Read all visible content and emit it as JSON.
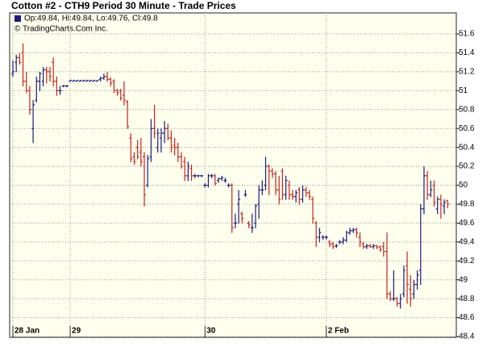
{
  "chart_data": {
    "type": "ohlc",
    "title": "Cotton #2 - CTH9 Period 30 Minute - Trade Prices",
    "legend_text": "Op:49.84, Hi:49.84, Lo:49.76, Cl:49.8",
    "copyright": "© TradingCharts.Com Inc.",
    "up_color": "#1c1c7a",
    "down_color": "#c8231b",
    "grid": true,
    "ylim": [
      48.4,
      51.8
    ],
    "yticks": [
      48.4,
      48.6,
      48.8,
      49,
      49.2,
      49.4,
      49.6,
      49.8,
      50,
      50.2,
      50.4,
      50.6,
      50.8,
      51,
      51.2,
      51.4,
      51.6
    ],
    "categories": [
      "28 Jan",
      null,
      null,
      null,
      null,
      null,
      null,
      null,
      null,
      null,
      null,
      null,
      null,
      null,
      null,
      null,
      null,
      "29",
      null,
      null,
      null,
      null,
      null,
      null,
      null,
      null,
      null,
      null,
      null,
      null,
      null,
      null,
      null,
      null,
      null,
      null,
      null,
      null,
      null,
      null,
      null,
      null,
      null,
      null,
      null,
      null,
      null,
      null,
      null,
      null,
      null,
      null,
      null,
      null,
      null,
      null,
      null,
      "30",
      null,
      null,
      null,
      null,
      null,
      null,
      null,
      null,
      null,
      null,
      null,
      null,
      null,
      null,
      null,
      null,
      null,
      null,
      null,
      null,
      null,
      null,
      null,
      null,
      null,
      null,
      null,
      null,
      null,
      null,
      null,
      null,
      null,
      null,
      null,
      "2 Feb",
      null,
      null,
      null,
      null,
      null,
      null,
      null,
      null,
      null,
      null,
      null,
      null,
      null,
      null,
      null,
      null,
      null,
      null,
      null,
      null,
      null,
      null,
      null,
      null,
      null,
      null,
      null,
      null,
      null,
      null,
      null,
      null,
      null,
      null,
      null,
      null
    ],
    "ohlc": [
      [
        51.18,
        51.32,
        51.15,
        51.2
      ],
      [
        51.3,
        51.38,
        51.2,
        51.35
      ],
      [
        51.35,
        51.4,
        51.28,
        51.3
      ],
      [
        51.4,
        51.5,
        51.05,
        51.1
      ],
      [
        51.1,
        51.2,
        50.98,
        51.0
      ],
      [
        51.0,
        51.05,
        50.75,
        50.8
      ],
      [
        50.6,
        50.9,
        50.45,
        50.85
      ],
      [
        50.9,
        51.15,
        50.88,
        51.1
      ],
      [
        51.1,
        51.2,
        51.0,
        51.18
      ],
      [
        51.1,
        51.25,
        51.05,
        51.22
      ],
      [
        51.22,
        51.25,
        51.08,
        51.2
      ],
      [
        51.2,
        51.25,
        51.1,
        51.15
      ],
      [
        51.3,
        51.35,
        51.05,
        51.1
      ],
      [
        51.1,
        51.15,
        50.95,
        51.0
      ],
      [
        51.0,
        51.05,
        50.96,
        51.0
      ],
      [
        51.05,
        51.06,
        51.04,
        51.05
      ],
      [
        51.05,
        51.06,
        51.04,
        51.05
      ],
      [
        51.1,
        51.11,
        51.1,
        51.11
      ],
      [
        51.1,
        51.11,
        51.1,
        51.11
      ],
      [
        51.1,
        51.11,
        51.1,
        51.11
      ],
      [
        51.1,
        51.11,
        51.1,
        51.11
      ],
      [
        51.1,
        51.11,
        51.1,
        51.11
      ],
      [
        51.1,
        51.11,
        51.1,
        51.11
      ],
      [
        51.1,
        51.11,
        51.1,
        51.11
      ],
      [
        51.1,
        51.11,
        51.1,
        51.11
      ],
      [
        51.1,
        51.11,
        51.1,
        51.11
      ],
      [
        51.12,
        51.15,
        51.1,
        51.13
      ],
      [
        51.13,
        51.18,
        51.12,
        51.15
      ],
      [
        51.15,
        51.2,
        51.1,
        51.12
      ],
      [
        51.12,
        51.14,
        51.05,
        51.08
      ],
      [
        51.1,
        51.12,
        50.98,
        51.0
      ],
      [
        51.0,
        51.02,
        50.95,
        50.98
      ],
      [
        51.0,
        51.02,
        50.9,
        50.92
      ],
      [
        50.95,
        51.1,
        50.85,
        50.9
      ],
      [
        50.88,
        50.9,
        50.6,
        50.62
      ],
      [
        50.5,
        50.55,
        50.25,
        50.28
      ],
      [
        50.3,
        50.35,
        50.22,
        50.25
      ],
      [
        50.4,
        50.48,
        50.28,
        50.3
      ],
      [
        50.35,
        50.5,
        50.2,
        50.25
      ],
      [
        50.3,
        50.35,
        49.78,
        49.9
      ],
      [
        50.0,
        50.32,
        49.98,
        50.28
      ],
      [
        50.3,
        50.7,
        50.25,
        50.6
      ],
      [
        50.6,
        50.85,
        50.5,
        50.55
      ],
      [
        50.4,
        50.6,
        50.35,
        50.55
      ],
      [
        50.5,
        50.6,
        50.35,
        50.55
      ],
      [
        50.55,
        50.68,
        50.45,
        50.6
      ],
      [
        50.6,
        50.65,
        50.48,
        50.5
      ],
      [
        50.5,
        50.58,
        50.35,
        50.4
      ],
      [
        50.42,
        50.5,
        50.32,
        50.4
      ],
      [
        50.4,
        50.45,
        50.25,
        50.3
      ],
      [
        50.3,
        50.35,
        50.18,
        50.2
      ],
      [
        50.25,
        50.3,
        50.05,
        50.1
      ],
      [
        50.1,
        50.25,
        50.05,
        50.2
      ],
      [
        50.18,
        50.22,
        50.05,
        50.1
      ],
      [
        50.1,
        50.12,
        50.08,
        50.1
      ],
      [
        50.1,
        50.11,
        50.09,
        50.1
      ],
      [
        50.1,
        50.11,
        50.09,
        50.1
      ],
      [
        50.0,
        50.02,
        49.98,
        50.0
      ],
      [
        50.0,
        50.12,
        49.98,
        50.1
      ],
      [
        50.1,
        50.12,
        50.08,
        50.1
      ],
      [
        50.1,
        50.12,
        50.0,
        50.02
      ],
      [
        50.05,
        50.08,
        50.03,
        50.07
      ],
      [
        50.07,
        50.1,
        50.05,
        50.08
      ],
      [
        50.05,
        50.08,
        50.03,
        50.05
      ],
      [
        50.0,
        50.02,
        49.98,
        50.0
      ],
      [
        50.0,
        50.02,
        49.5,
        49.55
      ],
      [
        49.6,
        49.7,
        49.55,
        49.6
      ],
      [
        49.8,
        49.95,
        49.6,
        49.85
      ],
      [
        49.7,
        49.72,
        49.6,
        49.65
      ],
      [
        49.9,
        49.95,
        49.88,
        49.9
      ],
      [
        49.6,
        49.62,
        49.55,
        49.58
      ],
      [
        49.55,
        49.7,
        49.5,
        49.55
      ],
      [
        49.6,
        49.8,
        49.55,
        49.78
      ],
      [
        49.8,
        50.0,
        49.65,
        49.95
      ],
      [
        49.95,
        50.05,
        49.9,
        49.95
      ],
      [
        50.0,
        50.3,
        49.95,
        50.2
      ],
      [
        50.2,
        50.22,
        49.9,
        50.15
      ],
      [
        50.15,
        50.18,
        50.08,
        50.12
      ],
      [
        50.12,
        50.15,
        49.9,
        49.95
      ],
      [
        49.95,
        50.1,
        49.8,
        49.85
      ],
      [
        50.15,
        50.18,
        49.85,
        49.9
      ],
      [
        49.9,
        50.1,
        49.85,
        50.05
      ],
      [
        50.0,
        50.05,
        49.85,
        49.9
      ],
      [
        49.9,
        49.95,
        49.85,
        49.88
      ],
      [
        49.88,
        49.95,
        49.82,
        49.92
      ],
      [
        49.95,
        49.98,
        49.8,
        49.85
      ],
      [
        49.85,
        50.0,
        49.82,
        49.95
      ],
      [
        49.95,
        49.98,
        49.88,
        49.92
      ],
      [
        49.92,
        49.95,
        49.85,
        49.88
      ],
      [
        49.85,
        49.88,
        49.6,
        49.65
      ],
      [
        49.6,
        49.62,
        49.35,
        49.45
      ],
      [
        49.45,
        49.55,
        49.4,
        49.5
      ],
      [
        49.45,
        49.47,
        49.43,
        49.45
      ],
      [
        49.45,
        49.47,
        49.43,
        49.45
      ],
      [
        49.4,
        49.42,
        49.35,
        49.38
      ],
      [
        49.38,
        49.4,
        49.33,
        49.35
      ],
      [
        49.36,
        49.38,
        49.34,
        49.36
      ],
      [
        49.4,
        49.42,
        49.38,
        49.4
      ],
      [
        49.4,
        49.45,
        49.38,
        49.42
      ],
      [
        49.42,
        49.52,
        49.4,
        49.5
      ],
      [
        49.5,
        49.55,
        49.48,
        49.52
      ],
      [
        49.52,
        49.55,
        49.5,
        49.53
      ],
      [
        49.53,
        49.55,
        49.45,
        49.5
      ],
      [
        49.45,
        49.5,
        49.35,
        49.4
      ],
      [
        49.38,
        49.4,
        49.33,
        49.35
      ],
      [
        49.35,
        49.38,
        49.33,
        49.36
      ],
      [
        49.36,
        49.38,
        49.34,
        49.35
      ],
      [
        49.35,
        49.38,
        49.33,
        49.36
      ],
      [
        49.36,
        49.37,
        49.33,
        49.34
      ],
      [
        49.35,
        49.36,
        49.3,
        49.32
      ],
      [
        49.35,
        49.4,
        49.25,
        49.3
      ],
      [
        49.3,
        49.5,
        48.8,
        48.85
      ],
      [
        48.85,
        48.88,
        48.78,
        48.8
      ],
      [
        48.8,
        49.1,
        48.78,
        48.8
      ],
      [
        48.8,
        48.82,
        48.72,
        48.75
      ],
      [
        48.75,
        48.85,
        48.7,
        48.8
      ],
      [
        48.85,
        49.15,
        48.82,
        49.1
      ],
      [
        49.15,
        49.3,
        48.75,
        48.95
      ],
      [
        48.9,
        49.05,
        48.72,
        48.8
      ],
      [
        48.85,
        49.0,
        48.8,
        48.95
      ],
      [
        48.95,
        49.1,
        48.9,
        49.05
      ],
      [
        49.1,
        49.8,
        48.95,
        49.75
      ],
      [
        49.75,
        50.2,
        49.7,
        50.1
      ],
      [
        50.1,
        50.15,
        49.85,
        49.9
      ],
      [
        49.9,
        50.05,
        49.88,
        49.95
      ],
      [
        50.0,
        50.05,
        49.78,
        49.82
      ],
      [
        49.75,
        49.88,
        49.7,
        49.85
      ],
      [
        49.85,
        49.9,
        49.65,
        49.8
      ],
      [
        49.78,
        49.85,
        49.7,
        49.82
      ],
      [
        49.84,
        49.84,
        49.76,
        49.8
      ]
    ]
  }
}
